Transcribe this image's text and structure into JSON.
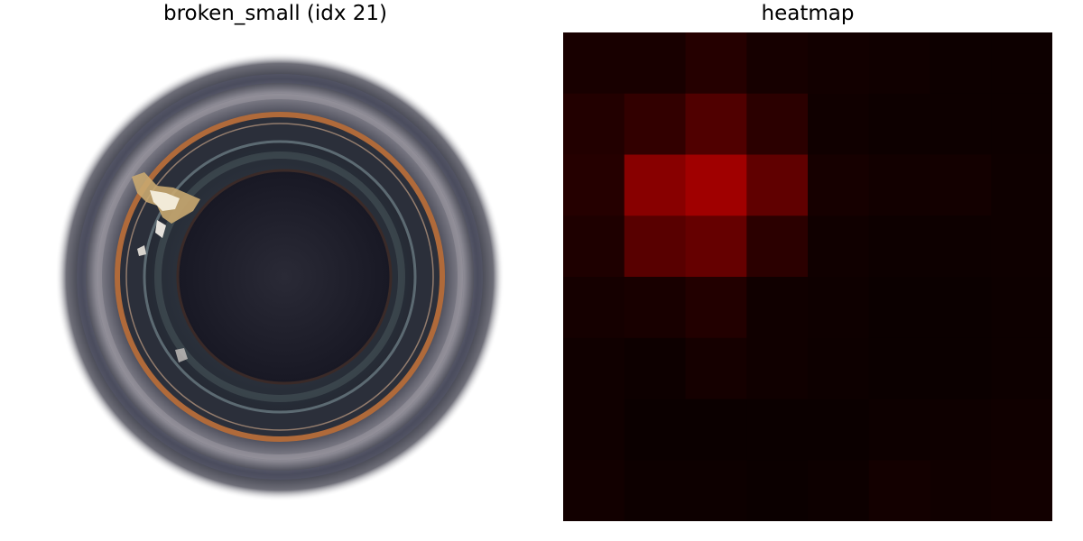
{
  "panels": {
    "left": {
      "title": "broken_small (idx 21)"
    },
    "right": {
      "title": "heatmap"
    }
  },
  "heatmap": {
    "rows": 8,
    "cols": 8,
    "values": [
      [
        0.1,
        0.1,
        0.18,
        0.09,
        0.06,
        0.05,
        0.03,
        0.03
      ],
      [
        0.16,
        0.26,
        0.45,
        0.22,
        0.05,
        0.03,
        0.03,
        0.03
      ],
      [
        0.18,
        0.8,
        0.95,
        0.55,
        0.09,
        0.06,
        0.07,
        0.04
      ],
      [
        0.14,
        0.5,
        0.58,
        0.22,
        0.05,
        0.03,
        0.03,
        0.04
      ],
      [
        0.08,
        0.1,
        0.16,
        0.05,
        0.04,
        0.02,
        0.02,
        0.03
      ],
      [
        0.05,
        0.03,
        0.08,
        0.05,
        0.03,
        0.02,
        0.02,
        0.03
      ],
      [
        0.05,
        0.02,
        0.02,
        0.02,
        0.02,
        0.03,
        0.04,
        0.05
      ],
      [
        0.06,
        0.03,
        0.03,
        0.02,
        0.03,
        0.07,
        0.05,
        0.06
      ]
    ],
    "colormap": {
      "low": "#080000",
      "high": "#a80000"
    }
  }
}
